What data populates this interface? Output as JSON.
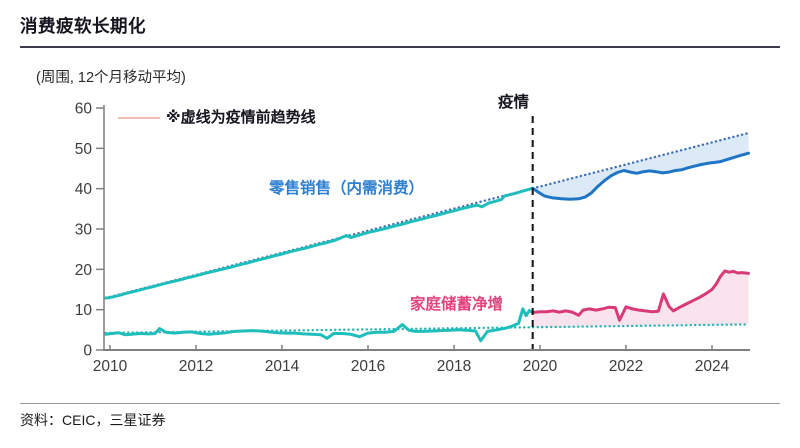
{
  "header": {
    "title": "消费疲软长期化"
  },
  "chart": {
    "unit_label": "(周围, 12个月移动平均)",
    "legend_note": "※虚线为疫情前趋势线",
    "pandemic_label": "疫情",
    "series_labels": {
      "retail": "零售销售（内需消费）",
      "savings": "家庭储蓄净增"
    }
  },
  "chart_data": {
    "type": "line",
    "title": "消费疲软长期化",
    "subtitle": "(周围, 12个月移动平均)",
    "xlabel": "",
    "ylabel": "",
    "xlim": [
      2009.9,
      2025.0
    ],
    "ylim": [
      0,
      60
    ],
    "x_ticks": [
      2010,
      2012,
      2014,
      2016,
      2018,
      2020,
      2022,
      2024
    ],
    "y_ticks": [
      0,
      10,
      20,
      30,
      40,
      50,
      60
    ],
    "grid": false,
    "legend_position": "top-left",
    "pandemic_x": 2019.83,
    "colors": {
      "teal": "#1fbebb",
      "blue": "#1e75c6",
      "pink": "#d93a78",
      "retail_trend_dot": "#3f6fb5",
      "savings_trend_dot": "#27b2b4",
      "blue_fill": "#dce9f7",
      "pink_fill": "#f9e4ee",
      "axis": "#7f7f7f",
      "tick_text": "#3d3d3d",
      "pandemic_line": "#111111"
    },
    "series": [
      {
        "name": "零售销售（内需消费）疫情前",
        "style": "solid",
        "color_key": "teal",
        "points": [
          [
            2009.9,
            12.9
          ],
          [
            2010.0,
            13.0
          ],
          [
            2010.2,
            13.5
          ],
          [
            2010.4,
            14.1
          ],
          [
            2010.6,
            14.6
          ],
          [
            2010.8,
            15.2
          ],
          [
            2011.0,
            15.7
          ],
          [
            2011.2,
            16.3
          ],
          [
            2011.4,
            16.8
          ],
          [
            2011.6,
            17.3
          ],
          [
            2011.8,
            17.9
          ],
          [
            2012.0,
            18.4
          ],
          [
            2012.2,
            19.0
          ],
          [
            2012.4,
            19.5
          ],
          [
            2012.6,
            20.0
          ],
          [
            2012.8,
            20.5
          ],
          [
            2013.0,
            21.1
          ],
          [
            2013.2,
            21.6
          ],
          [
            2013.4,
            22.2
          ],
          [
            2013.6,
            22.7
          ],
          [
            2013.8,
            23.3
          ],
          [
            2014.0,
            23.8
          ],
          [
            2014.2,
            24.4
          ],
          [
            2014.4,
            24.9
          ],
          [
            2014.6,
            25.4
          ],
          [
            2014.8,
            26.0
          ],
          [
            2015.0,
            26.5
          ],
          [
            2015.2,
            27.1
          ],
          [
            2015.35,
            27.7
          ],
          [
            2015.5,
            28.4
          ],
          [
            2015.6,
            27.9
          ],
          [
            2015.8,
            28.5
          ],
          [
            2016.0,
            29.1
          ],
          [
            2016.2,
            29.6
          ],
          [
            2016.4,
            30.1
          ],
          [
            2016.6,
            30.7
          ],
          [
            2016.8,
            31.2
          ],
          [
            2017.0,
            31.8
          ],
          [
            2017.2,
            32.3
          ],
          [
            2017.4,
            32.9
          ],
          [
            2017.6,
            33.4
          ],
          [
            2017.8,
            34.0
          ],
          [
            2018.0,
            34.5
          ],
          [
            2018.2,
            35.1
          ],
          [
            2018.4,
            35.6
          ],
          [
            2018.55,
            35.9
          ],
          [
            2018.65,
            35.5
          ],
          [
            2018.8,
            36.4
          ],
          [
            2019.0,
            37.0
          ],
          [
            2019.1,
            37.3
          ],
          [
            2019.18,
            38.2
          ],
          [
            2019.3,
            38.5
          ],
          [
            2019.45,
            38.9
          ],
          [
            2019.6,
            39.4
          ],
          [
            2019.83,
            40.1
          ]
        ]
      },
      {
        "name": "零售销售（内需消费）疫情后",
        "style": "solid",
        "color_key": "blue",
        "points": [
          [
            2019.83,
            40.1
          ],
          [
            2019.95,
            39.2
          ],
          [
            2020.1,
            38.2
          ],
          [
            2020.3,
            37.7
          ],
          [
            2020.5,
            37.5
          ],
          [
            2020.7,
            37.4
          ],
          [
            2020.9,
            37.5
          ],
          [
            2021.05,
            37.9
          ],
          [
            2021.2,
            39.0
          ],
          [
            2021.35,
            40.6
          ],
          [
            2021.5,
            42.0
          ],
          [
            2021.65,
            43.2
          ],
          [
            2021.8,
            44.0
          ],
          [
            2021.95,
            44.5
          ],
          [
            2022.1,
            44.1
          ],
          [
            2022.25,
            43.8
          ],
          [
            2022.4,
            44.2
          ],
          [
            2022.55,
            44.4
          ],
          [
            2022.7,
            44.2
          ],
          [
            2022.85,
            43.9
          ],
          [
            2023.0,
            44.1
          ],
          [
            2023.15,
            44.5
          ],
          [
            2023.3,
            44.7
          ],
          [
            2023.45,
            45.2
          ],
          [
            2023.6,
            45.6
          ],
          [
            2023.75,
            46.0
          ],
          [
            2023.9,
            46.3
          ],
          [
            2024.05,
            46.5
          ],
          [
            2024.2,
            46.7
          ],
          [
            2024.35,
            47.2
          ],
          [
            2024.5,
            47.7
          ],
          [
            2024.65,
            48.2
          ],
          [
            2024.85,
            48.8
          ]
        ]
      },
      {
        "name": "零售销售疫情前趋势线",
        "style": "dotted",
        "color_key": "retail_trend_dot",
        "points": [
          [
            2009.9,
            12.9
          ],
          [
            2024.85,
            53.8
          ]
        ]
      },
      {
        "name": "家庭储蓄净增疫情前",
        "style": "solid",
        "color_key": "teal",
        "points": [
          [
            2009.9,
            3.9
          ],
          [
            2010.05,
            4.1
          ],
          [
            2010.2,
            4.3
          ],
          [
            2010.35,
            3.8
          ],
          [
            2010.5,
            3.9
          ],
          [
            2010.7,
            4.1
          ],
          [
            2010.9,
            4.0
          ],
          [
            2011.05,
            4.1
          ],
          [
            2011.15,
            5.3
          ],
          [
            2011.3,
            4.4
          ],
          [
            2011.5,
            4.2
          ],
          [
            2011.7,
            4.4
          ],
          [
            2011.9,
            4.5
          ],
          [
            2012.1,
            4.1
          ],
          [
            2012.3,
            3.9
          ],
          [
            2012.5,
            4.1
          ],
          [
            2012.7,
            4.3
          ],
          [
            2012.9,
            4.6
          ],
          [
            2013.1,
            4.7
          ],
          [
            2013.3,
            4.8
          ],
          [
            2013.5,
            4.7
          ],
          [
            2013.7,
            4.5
          ],
          [
            2013.9,
            4.3
          ],
          [
            2014.1,
            4.2
          ],
          [
            2014.3,
            4.2
          ],
          [
            2014.5,
            4.0
          ],
          [
            2014.7,
            3.9
          ],
          [
            2014.9,
            3.8
          ],
          [
            2015.05,
            2.9
          ],
          [
            2015.2,
            4.1
          ],
          [
            2015.4,
            4.1
          ],
          [
            2015.6,
            3.9
          ],
          [
            2015.8,
            3.3
          ],
          [
            2016.0,
            4.2
          ],
          [
            2016.2,
            4.4
          ],
          [
            2016.4,
            4.4
          ],
          [
            2016.6,
            4.6
          ],
          [
            2016.8,
            6.3
          ],
          [
            2016.95,
            4.9
          ],
          [
            2017.1,
            4.6
          ],
          [
            2017.3,
            4.6
          ],
          [
            2017.5,
            4.7
          ],
          [
            2017.7,
            4.8
          ],
          [
            2017.9,
            4.9
          ],
          [
            2018.1,
            5.0
          ],
          [
            2018.3,
            4.9
          ],
          [
            2018.5,
            4.7
          ],
          [
            2018.62,
            2.3
          ],
          [
            2018.78,
            4.6
          ],
          [
            2019.0,
            5.0
          ],
          [
            2019.2,
            5.4
          ],
          [
            2019.35,
            5.9
          ],
          [
            2019.5,
            6.6
          ],
          [
            2019.6,
            10.2
          ],
          [
            2019.68,
            8.5
          ],
          [
            2019.75,
            9.8
          ],
          [
            2019.83,
            9.3
          ]
        ]
      },
      {
        "name": "家庭储蓄净增疫情后",
        "style": "solid",
        "color_key": "pink",
        "points": [
          [
            2019.83,
            9.3
          ],
          [
            2020.0,
            9.5
          ],
          [
            2020.15,
            9.5
          ],
          [
            2020.3,
            9.7
          ],
          [
            2020.45,
            9.4
          ],
          [
            2020.6,
            9.7
          ],
          [
            2020.75,
            9.4
          ],
          [
            2020.9,
            8.6
          ],
          [
            2021.0,
            9.9
          ],
          [
            2021.15,
            10.2
          ],
          [
            2021.3,
            9.9
          ],
          [
            2021.45,
            10.2
          ],
          [
            2021.6,
            10.6
          ],
          [
            2021.75,
            10.5
          ],
          [
            2021.85,
            7.4
          ],
          [
            2022.0,
            10.7
          ],
          [
            2022.15,
            10.2
          ],
          [
            2022.3,
            9.9
          ],
          [
            2022.45,
            9.7
          ],
          [
            2022.6,
            9.5
          ],
          [
            2022.75,
            9.6
          ],
          [
            2022.87,
            13.9
          ],
          [
            2023.0,
            10.8
          ],
          [
            2023.1,
            9.7
          ],
          [
            2023.25,
            10.6
          ],
          [
            2023.4,
            11.4
          ],
          [
            2023.55,
            12.2
          ],
          [
            2023.7,
            13.0
          ],
          [
            2023.85,
            13.9
          ],
          [
            2024.0,
            15.0
          ],
          [
            2024.1,
            16.4
          ],
          [
            2024.2,
            18.3
          ],
          [
            2024.3,
            19.6
          ],
          [
            2024.4,
            19.3
          ],
          [
            2024.5,
            19.5
          ],
          [
            2024.6,
            19.1
          ],
          [
            2024.7,
            19.2
          ],
          [
            2024.85,
            19.0
          ]
        ]
      },
      {
        "name": "家庭储蓄疫情前趋势线",
        "style": "dotted",
        "color_key": "savings_trend_dot",
        "points": [
          [
            2009.9,
            4.25
          ],
          [
            2024.85,
            6.35
          ]
        ]
      }
    ],
    "fills": [
      {
        "name": "零售缺口",
        "color_key": "blue_fill",
        "top_series": 2,
        "bottom_series": 1
      },
      {
        "name": "储蓄超额",
        "color_key": "pink_fill",
        "top_series": 4,
        "bottom_series": 5
      }
    ]
  },
  "footer": {
    "source": "资料：CEIC，三星证券"
  }
}
